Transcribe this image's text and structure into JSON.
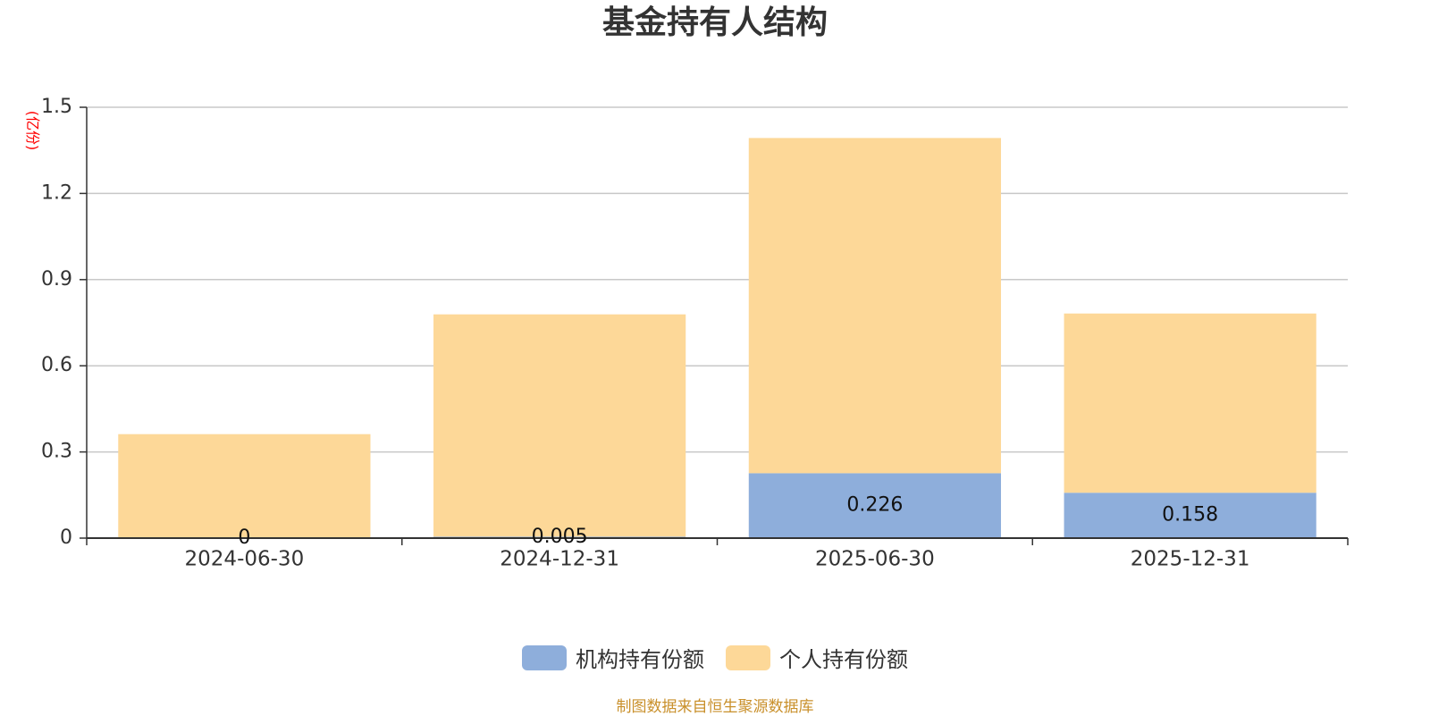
{
  "chart_data": {
    "type": "bar",
    "stacked": true,
    "title": "基金持有人结构",
    "unit_label": "(亿份)",
    "categories": [
      "2024-06-30",
      "2024-12-31",
      "2025-06-30",
      "2025-12-31"
    ],
    "series": [
      {
        "name": "机构持有份额",
        "color": "#8eaedb",
        "values": [
          0,
          0.005,
          0.226,
          0.158
        ],
        "data_labels": [
          "0",
          "0.005",
          "0.226",
          "0.158"
        ]
      },
      {
        "name": "个人持有份额",
        "color": "#fdd898",
        "values": [
          0.362,
          0.774,
          1.167,
          0.624
        ]
      }
    ],
    "ylim": [
      0,
      1.5
    ],
    "yticks": [
      0,
      0.3,
      0.6,
      0.9,
      1.2,
      1.5
    ],
    "ytick_labels": [
      "0",
      "0.3",
      "0.6",
      "0.9",
      "1.2",
      "1.5"
    ],
    "grid": true,
    "legend_position": "bottom-center"
  },
  "source_note": "制图数据来自恒生聚源数据库"
}
